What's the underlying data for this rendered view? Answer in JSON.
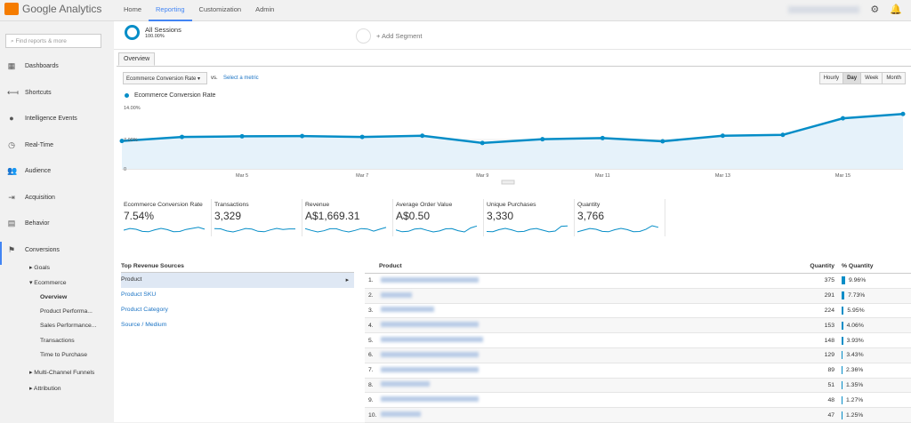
{
  "app": {
    "title": "Google Analytics"
  },
  "nav": [
    "Home",
    "Reporting",
    "Customization",
    "Admin"
  ],
  "sidebar": {
    "search_placeholder": "Find reports & more",
    "items": [
      {
        "label": "Dashboards",
        "icon": "grid-icon"
      },
      {
        "label": "Shortcuts",
        "icon": "shortcut-arrow-icon"
      },
      {
        "label": "Intelligence Events",
        "icon": "lightbulb-icon"
      },
      {
        "label": "Real-Time",
        "icon": "clock-icon"
      },
      {
        "label": "Audience",
        "icon": "people-icon"
      },
      {
        "label": "Acquisition",
        "icon": "acquisition-icon"
      },
      {
        "label": "Behavior",
        "icon": "behavior-icon"
      },
      {
        "label": "Conversions",
        "icon": "flag-icon"
      }
    ],
    "sub": {
      "goals": "▸ Goals",
      "ecommerce": "▾ Ecommerce",
      "overview": "Overview",
      "product_perf": "Product Performa...",
      "sales_perf": "Sales Performance...",
      "transactions": "Transactions",
      "time": "Time to Purchase",
      "mcf": "▸ Multi-Channel Funnels",
      "attribution": "▸ Attribution"
    }
  },
  "segments": {
    "name": "All Sessions",
    "pct": "100.00%",
    "add": "+ Add Segment"
  },
  "tab": "Overview",
  "controls": {
    "metric": "Ecommerce Conversion Rate",
    "vs": "vs.",
    "select": "Select a metric",
    "granularity": [
      "Hourly",
      "Day",
      "Week",
      "Month"
    ],
    "active": "Day"
  },
  "chart_data": {
    "type": "area",
    "title": "",
    "legend": [
      "Ecommerce Conversion Rate"
    ],
    "x": [
      "Mar 3",
      "Mar 4",
      "Mar 5",
      "Mar 6",
      "Mar 7",
      "Mar 8",
      "Mar 9",
      "Mar 10",
      "Mar 11",
      "Mar 12",
      "Mar 13",
      "Mar 14",
      "Mar 15",
      "Mar 16"
    ],
    "values": [
      6.65,
      7.62,
      7.76,
      7.83,
      7.62,
      7.9,
      6.17,
      7.07,
      7.35,
      6.58,
      7.9,
      8.11,
      12.06,
      13.1
    ],
    "x_tick_labels": [
      "Mar 5",
      "Mar 7",
      "Mar 9",
      "Mar 11",
      "Mar 13",
      "Mar 15"
    ],
    "y_tick_labels": [
      "14.00%",
      "7.00%",
      "0"
    ],
    "ylim": [
      0,
      14
    ],
    "color": "#058dc7"
  },
  "metrics": [
    {
      "label": "Ecommerce Conversion Rate",
      "value": "7.54%"
    },
    {
      "label": "Transactions",
      "value": "3,329"
    },
    {
      "label": "Revenue",
      "value": "A$1,669.31"
    },
    {
      "label": "Average Order Value",
      "value": "A$0.50"
    },
    {
      "label": "Unique Purchases",
      "value": "3,330"
    },
    {
      "label": "Quantity",
      "value": "3,766"
    }
  ],
  "sources": {
    "title": "Top Revenue Sources",
    "items": [
      "Product",
      "Product SKU",
      "Product Category",
      "Source / Medium"
    ]
  },
  "products": {
    "headers": {
      "product": "Product",
      "qty": "Quantity",
      "pct": "% Quantity"
    },
    "rows": [
      {
        "n": "1.",
        "q": "375",
        "p": "9.96%",
        "f": 9.96
      },
      {
        "n": "2.",
        "q": "291",
        "p": "7.73%",
        "f": 7.73
      },
      {
        "n": "3.",
        "q": "224",
        "p": "5.95%",
        "f": 5.95
      },
      {
        "n": "4.",
        "q": "153",
        "p": "4.06%",
        "f": 4.06
      },
      {
        "n": "5.",
        "q": "148",
        "p": "3.93%",
        "f": 3.93
      },
      {
        "n": "6.",
        "q": "129",
        "p": "3.43%",
        "f": 3.43
      },
      {
        "n": "7.",
        "q": "89",
        "p": "2.36%",
        "f": 2.36
      },
      {
        "n": "8.",
        "q": "51",
        "p": "1.35%",
        "f": 1.35
      },
      {
        "n": "9.",
        "q": "48",
        "p": "1.27%",
        "f": 1.27
      },
      {
        "n": "10.",
        "q": "47",
        "p": "1.25%",
        "f": 1.25
      }
    ]
  }
}
